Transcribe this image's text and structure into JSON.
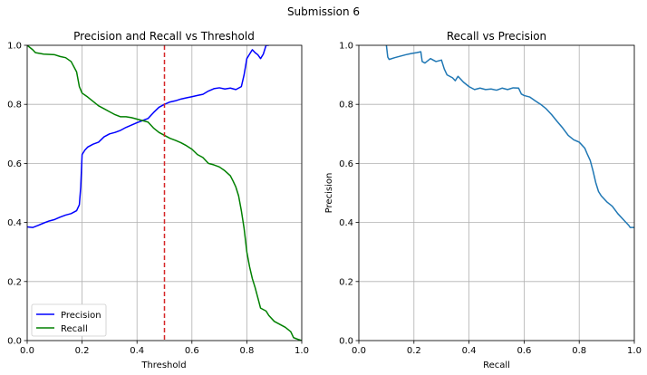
{
  "figure": {
    "suptitle": "Submission 6"
  },
  "chart_data": [
    {
      "type": "line",
      "title": "Precision and Recall vs Threshold",
      "xlabel": "Threshold",
      "ylabel": "",
      "xlim": [
        0,
        1
      ],
      "ylim": [
        0,
        1
      ],
      "xticks": [
        "0.0",
        "0.2",
        "0.4",
        "0.6",
        "0.8",
        "1.0"
      ],
      "yticks": [
        "0.0",
        "0.2",
        "0.4",
        "0.6",
        "0.8",
        "1.0"
      ],
      "grid": true,
      "legend": "lower-left",
      "vline": {
        "x": 0.5,
        "color": "#d62728",
        "style": "dashed"
      },
      "series": [
        {
          "name": "Precision",
          "color": "#0000ff",
          "points": [
            [
              0.0,
              0.385
            ],
            [
              0.02,
              0.383
            ],
            [
              0.04,
              0.39
            ],
            [
              0.06,
              0.398
            ],
            [
              0.08,
              0.405
            ],
            [
              0.1,
              0.41
            ],
            [
              0.12,
              0.418
            ],
            [
              0.14,
              0.425
            ],
            [
              0.16,
              0.43
            ],
            [
              0.18,
              0.44
            ],
            [
              0.19,
              0.46
            ],
            [
              0.195,
              0.52
            ],
            [
              0.2,
              0.63
            ],
            [
              0.21,
              0.645
            ],
            [
              0.22,
              0.655
            ],
            [
              0.24,
              0.665
            ],
            [
              0.26,
              0.672
            ],
            [
              0.28,
              0.69
            ],
            [
              0.3,
              0.7
            ],
            [
              0.32,
              0.705
            ],
            [
              0.34,
              0.712
            ],
            [
              0.36,
              0.722
            ],
            [
              0.38,
              0.73
            ],
            [
              0.4,
              0.738
            ],
            [
              0.42,
              0.745
            ],
            [
              0.44,
              0.752
            ],
            [
              0.46,
              0.772
            ],
            [
              0.48,
              0.79
            ],
            [
              0.5,
              0.8
            ],
            [
              0.52,
              0.808
            ],
            [
              0.54,
              0.812
            ],
            [
              0.56,
              0.818
            ],
            [
              0.58,
              0.822
            ],
            [
              0.6,
              0.826
            ],
            [
              0.62,
              0.83
            ],
            [
              0.64,
              0.834
            ],
            [
              0.66,
              0.845
            ],
            [
              0.68,
              0.853
            ],
            [
              0.7,
              0.856
            ],
            [
              0.72,
              0.852
            ],
            [
              0.74,
              0.855
            ],
            [
              0.76,
              0.85
            ],
            [
              0.78,
              0.86
            ],
            [
              0.79,
              0.9
            ],
            [
              0.8,
              0.955
            ],
            [
              0.81,
              0.97
            ],
            [
              0.82,
              0.985
            ],
            [
              0.83,
              0.975
            ],
            [
              0.84,
              0.968
            ],
            [
              0.85,
              0.955
            ],
            [
              0.86,
              0.97
            ],
            [
              0.87,
              1.0
            ],
            [
              0.88,
              1.0
            ]
          ]
        },
        {
          "name": "Recall",
          "color": "#008000",
          "points": [
            [
              0.0,
              1.0
            ],
            [
              0.02,
              0.985
            ],
            [
              0.03,
              0.975
            ],
            [
              0.06,
              0.97
            ],
            [
              0.1,
              0.968
            ],
            [
              0.12,
              0.962
            ],
            [
              0.14,
              0.958
            ],
            [
              0.16,
              0.945
            ],
            [
              0.18,
              0.91
            ],
            [
              0.19,
              0.86
            ],
            [
              0.2,
              0.838
            ],
            [
              0.22,
              0.825
            ],
            [
              0.24,
              0.81
            ],
            [
              0.26,
              0.795
            ],
            [
              0.28,
              0.785
            ],
            [
              0.3,
              0.775
            ],
            [
              0.32,
              0.765
            ],
            [
              0.34,
              0.758
            ],
            [
              0.36,
              0.758
            ],
            [
              0.38,
              0.755
            ],
            [
              0.4,
              0.75
            ],
            [
              0.42,
              0.745
            ],
            [
              0.44,
              0.74
            ],
            [
              0.46,
              0.72
            ],
            [
              0.48,
              0.705
            ],
            [
              0.5,
              0.695
            ],
            [
              0.52,
              0.685
            ],
            [
              0.54,
              0.678
            ],
            [
              0.56,
              0.67
            ],
            [
              0.58,
              0.66
            ],
            [
              0.6,
              0.648
            ],
            [
              0.62,
              0.63
            ],
            [
              0.64,
              0.62
            ],
            [
              0.66,
              0.6
            ],
            [
              0.68,
              0.595
            ],
            [
              0.7,
              0.588
            ],
            [
              0.72,
              0.575
            ],
            [
              0.74,
              0.558
            ],
            [
              0.75,
              0.54
            ],
            [
              0.76,
              0.52
            ],
            [
              0.77,
              0.49
            ],
            [
              0.78,
              0.44
            ],
            [
              0.79,
              0.38
            ],
            [
              0.8,
              0.3
            ],
            [
              0.81,
              0.25
            ],
            [
              0.82,
              0.21
            ],
            [
              0.83,
              0.18
            ],
            [
              0.84,
              0.145
            ],
            [
              0.85,
              0.11
            ],
            [
              0.87,
              0.1
            ],
            [
              0.88,
              0.085
            ],
            [
              0.9,
              0.065
            ],
            [
              0.92,
              0.055
            ],
            [
              0.94,
              0.045
            ],
            [
              0.96,
              0.03
            ],
            [
              0.97,
              0.01
            ],
            [
              0.99,
              0.003
            ],
            [
              1.0,
              0.0
            ]
          ]
        }
      ]
    },
    {
      "type": "line",
      "title": "Recall vs Precision",
      "xlabel": "Recall",
      "ylabel": "Precision",
      "xlim": [
        0,
        1
      ],
      "ylim": [
        0,
        1
      ],
      "xticks": [
        "0.0",
        "0.2",
        "0.4",
        "0.6",
        "0.8",
        "1.0"
      ],
      "yticks": [
        "0.0",
        "0.2",
        "0.4",
        "0.6",
        "0.8",
        "1.0"
      ],
      "grid": true,
      "series": [
        {
          "name": "",
          "color": "#1f77b4",
          "points": [
            [
              0.1,
              1.0
            ],
            [
              0.105,
              0.96
            ],
            [
              0.11,
              0.952
            ],
            [
              0.13,
              0.958
            ],
            [
              0.15,
              0.963
            ],
            [
              0.17,
              0.968
            ],
            [
              0.19,
              0.972
            ],
            [
              0.21,
              0.975
            ],
            [
              0.225,
              0.978
            ],
            [
              0.23,
              0.945
            ],
            [
              0.24,
              0.94
            ],
            [
              0.26,
              0.955
            ],
            [
              0.28,
              0.945
            ],
            [
              0.3,
              0.95
            ],
            [
              0.31,
              0.92
            ],
            [
              0.32,
              0.9
            ],
            [
              0.34,
              0.89
            ],
            [
              0.35,
              0.88
            ],
            [
              0.36,
              0.895
            ],
            [
              0.38,
              0.875
            ],
            [
              0.4,
              0.86
            ],
            [
              0.42,
              0.85
            ],
            [
              0.44,
              0.855
            ],
            [
              0.46,
              0.85
            ],
            [
              0.48,
              0.852
            ],
            [
              0.5,
              0.848
            ],
            [
              0.52,
              0.855
            ],
            [
              0.54,
              0.85
            ],
            [
              0.56,
              0.856
            ],
            [
              0.58,
              0.855
            ],
            [
              0.59,
              0.835
            ],
            [
              0.6,
              0.83
            ],
            [
              0.62,
              0.825
            ],
            [
              0.64,
              0.812
            ],
            [
              0.66,
              0.8
            ],
            [
              0.68,
              0.785
            ],
            [
              0.7,
              0.765
            ],
            [
              0.72,
              0.742
            ],
            [
              0.74,
              0.72
            ],
            [
              0.76,
              0.695
            ],
            [
              0.78,
              0.68
            ],
            [
              0.8,
              0.672
            ],
            [
              0.82,
              0.652
            ],
            [
              0.83,
              0.63
            ],
            [
              0.84,
              0.61
            ],
            [
              0.85,
              0.575
            ],
            [
              0.86,
              0.535
            ],
            [
              0.87,
              0.505
            ],
            [
              0.88,
              0.49
            ],
            [
              0.9,
              0.47
            ],
            [
              0.92,
              0.455
            ],
            [
              0.94,
              0.43
            ],
            [
              0.96,
              0.41
            ],
            [
              0.98,
              0.39
            ],
            [
              0.985,
              0.383
            ],
            [
              1.0,
              0.383
            ]
          ]
        }
      ]
    }
  ]
}
